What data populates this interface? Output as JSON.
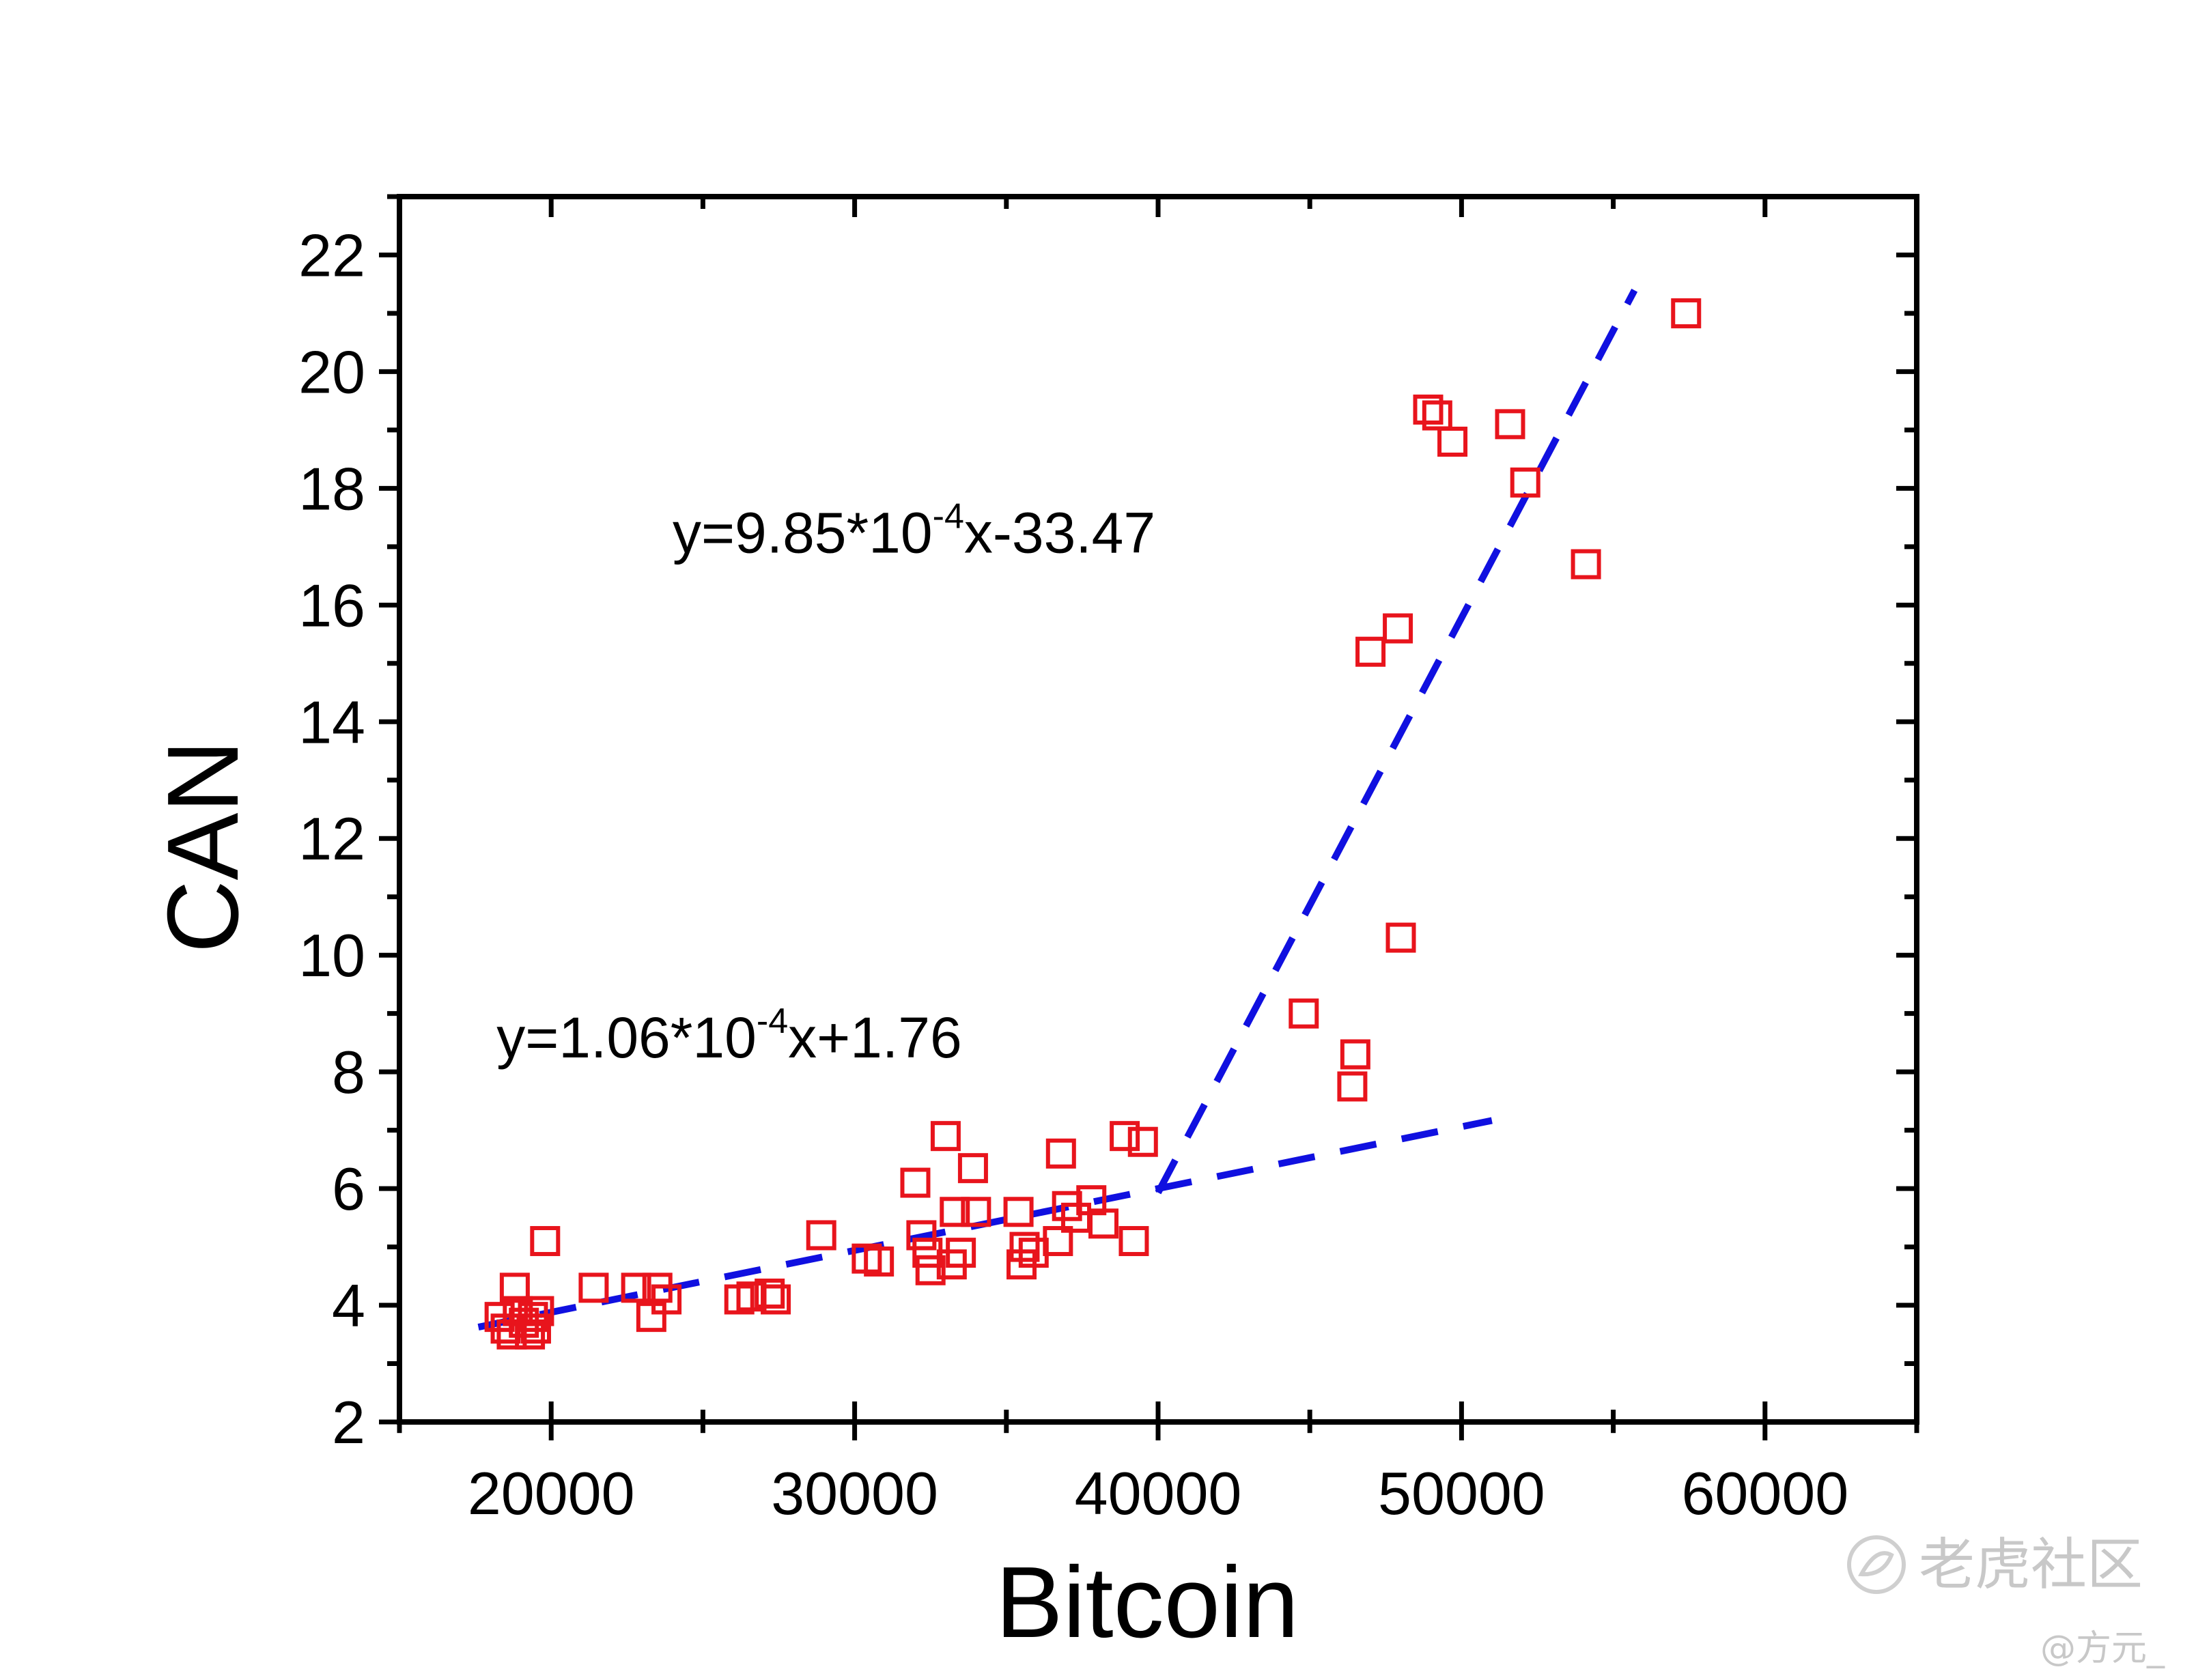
{
  "chart_data": {
    "type": "scatter",
    "title": "",
    "xlabel": "Bitcoin",
    "ylabel": "CAN",
    "xlim": [
      15000,
      65000
    ],
    "ylim": [
      2,
      23
    ],
    "x_ticks": [
      20000,
      30000,
      40000,
      50000,
      60000
    ],
    "y_ticks": [
      2,
      4,
      6,
      8,
      10,
      12,
      14,
      16,
      18,
      20,
      22
    ],
    "grid": false,
    "legend": "none",
    "marker": "open-square",
    "marker_color": "#e8141c",
    "fit_color": "#1010e0",
    "points": [
      {
        "x": 18300,
        "y": 3.8
      },
      {
        "x": 18500,
        "y": 3.6
      },
      {
        "x": 18700,
        "y": 3.5
      },
      {
        "x": 18900,
        "y": 3.9
      },
      {
        "x": 18800,
        "y": 4.3
      },
      {
        "x": 19100,
        "y": 3.7
      },
      {
        "x": 19300,
        "y": 3.5
      },
      {
        "x": 19400,
        "y": 3.8
      },
      {
        "x": 19600,
        "y": 3.9
      },
      {
        "x": 19500,
        "y": 3.6
      },
      {
        "x": 19800,
        "y": 5.1
      },
      {
        "x": 21400,
        "y": 4.3
      },
      {
        "x": 22800,
        "y": 4.3
      },
      {
        "x": 23300,
        "y": 3.8
      },
      {
        "x": 23500,
        "y": 4.3
      },
      {
        "x": 23800,
        "y": 4.1
      },
      {
        "x": 26200,
        "y": 4.1
      },
      {
        "x": 26600,
        "y": 4.15
      },
      {
        "x": 27200,
        "y": 4.2
      },
      {
        "x": 27400,
        "y": 4.1
      },
      {
        "x": 28900,
        "y": 5.2
      },
      {
        "x": 30400,
        "y": 4.8
      },
      {
        "x": 30800,
        "y": 4.75
      },
      {
        "x": 32000,
        "y": 6.1
      },
      {
        "x": 32200,
        "y": 5.2
      },
      {
        "x": 32400,
        "y": 4.9
      },
      {
        "x": 32500,
        "y": 4.6
      },
      {
        "x": 33000,
        "y": 6.9
      },
      {
        "x": 33200,
        "y": 4.7
      },
      {
        "x": 33300,
        "y": 5.6
      },
      {
        "x": 33500,
        "y": 4.9
      },
      {
        "x": 33900,
        "y": 6.35
      },
      {
        "x": 34000,
        "y": 5.6
      },
      {
        "x": 35400,
        "y": 5.6
      },
      {
        "x": 35500,
        "y": 4.7
      },
      {
        "x": 35600,
        "y": 5.0
      },
      {
        "x": 35900,
        "y": 4.9
      },
      {
        "x": 36700,
        "y": 5.1
      },
      {
        "x": 36800,
        "y": 6.6
      },
      {
        "x": 37000,
        "y": 5.7
      },
      {
        "x": 37300,
        "y": 5.5
      },
      {
        "x": 37800,
        "y": 5.8
      },
      {
        "x": 38200,
        "y": 5.4
      },
      {
        "x": 38900,
        "y": 6.9
      },
      {
        "x": 39200,
        "y": 5.1
      },
      {
        "x": 39500,
        "y": 6.8
      },
      {
        "x": 44800,
        "y": 9.0
      },
      {
        "x": 46400,
        "y": 7.75
      },
      {
        "x": 46500,
        "y": 8.3
      },
      {
        "x": 47000,
        "y": 15.2
      },
      {
        "x": 47900,
        "y": 15.6
      },
      {
        "x": 48000,
        "y": 10.3
      },
      {
        "x": 48900,
        "y": 19.35
      },
      {
        "x": 49200,
        "y": 19.25
      },
      {
        "x": 49700,
        "y": 18.8
      },
      {
        "x": 51600,
        "y": 19.1
      },
      {
        "x": 52100,
        "y": 18.1
      },
      {
        "x": 54100,
        "y": 16.7
      },
      {
        "x": 57400,
        "y": 21.0
      }
    ],
    "fits": [
      {
        "name": "low",
        "slope": 0.000106,
        "intercept": 1.76,
        "x_range": [
          17600,
          51000
        ]
      },
      {
        "name": "high",
        "slope": 0.000985,
        "intercept": -33.47,
        "x_range": [
          40000,
          55700
        ]
      }
    ],
    "annotations": [
      {
        "pre": "y=1.06*10",
        "sup": "-4",
        "post": "x+1.76",
        "x": 18200,
        "y": 8.25
      },
      {
        "pre": "y=9.85*10",
        "sup": "-4",
        "post": "x-33.47",
        "x": 24000,
        "y": 16.9
      }
    ]
  },
  "watermark": {
    "text": "老虎社区",
    "handle": "@方元_"
  }
}
